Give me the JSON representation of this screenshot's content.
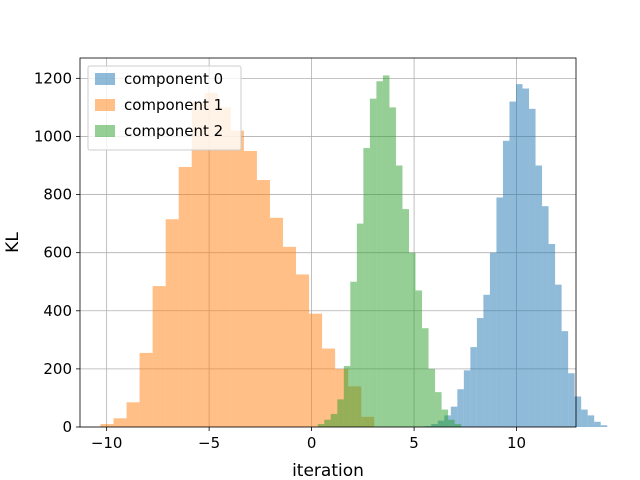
{
  "chart_data": {
    "type": "histogram",
    "title": "",
    "xlabel": "iteration",
    "ylabel": "KL",
    "xlim": [
      -11.3,
      12.9
    ],
    "ylim": [
      0,
      1270
    ],
    "xticks": [
      -10,
      -5,
      0,
      5,
      10
    ],
    "xtick_labels": [
      "−10",
      "−5",
      "0",
      "5",
      "10"
    ],
    "yticks": [
      0,
      200,
      400,
      600,
      800,
      1000,
      1200
    ],
    "ytick_labels": [
      "0",
      "200",
      "400",
      "600",
      "800",
      "1000",
      "1200"
    ],
    "grid": true,
    "legend_position": "top-left",
    "series": [
      {
        "name": "component 0",
        "color": "#1f77b4",
        "alpha": 0.5,
        "bin_start": 5.52,
        "bin_width": 0.318,
        "counts": [
          3,
          10,
          22,
          40,
          70,
          130,
          195,
          275,
          375,
          455,
          600,
          790,
          985,
          1120,
          1180,
          1165,
          1095,
          900,
          760,
          630,
          490,
          330,
          185,
          105,
          60,
          40,
          18,
          6
        ]
      },
      {
        "name": "component 1",
        "color": "#ff7f0e",
        "alpha": 0.5,
        "bin_start": -10.3,
        "bin_width": 0.636,
        "counts": [
          10,
          30,
          85,
          255,
          485,
          715,
          895,
          1120,
          1150,
          1100,
          1020,
          950,
          850,
          720,
          620,
          525,
          390,
          270,
          200,
          140,
          35
        ]
      },
      {
        "name": "component 2",
        "color": "#2ca02c",
        "alpha": 0.5,
        "bin_start": 0.3,
        "bin_width": 0.318,
        "counts": [
          10,
          25,
          45,
          95,
          210,
          500,
          700,
          960,
          1130,
          1190,
          1210,
          1100,
          900,
          750,
          600,
          470,
          340,
          200,
          120,
          60,
          25,
          10
        ]
      }
    ]
  }
}
